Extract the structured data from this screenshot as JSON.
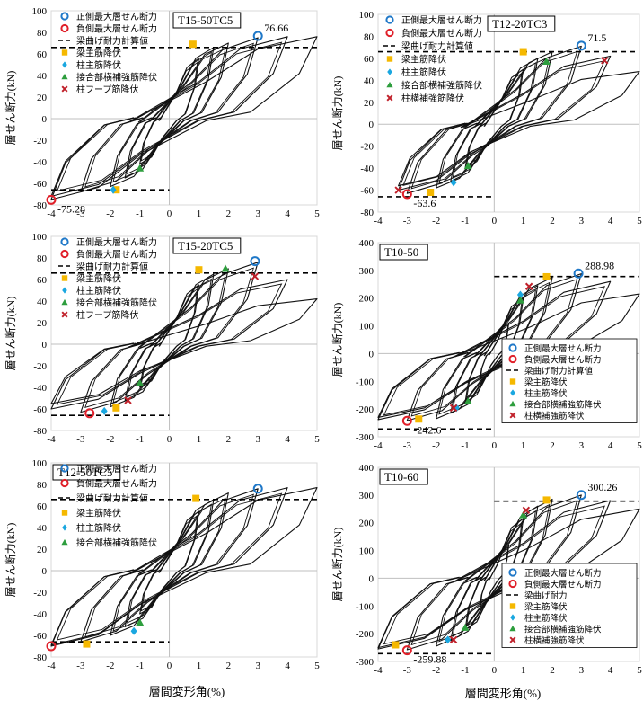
{
  "page": {
    "x_axis_label": "層間変形角(%)",
    "y_axis_label": "層せん断力(kN)"
  },
  "legend_text": {
    "pos_max": "正側最大層せん断力",
    "neg_max": "負側最大層せん断力",
    "calc": "梁曲げ耐力計算値",
    "calc_short": "梁曲げ耐力",
    "beam": "梁主筋降伏",
    "col": "柱主筋降伏",
    "joint": "接合部横補強筋降伏",
    "hoop": "柱フープ筋降伏",
    "colhoop": "柱横補強筋降伏"
  },
  "colors": {
    "pos": "#1f78c8",
    "neg": "#e0202a",
    "beam": "#f5b800",
    "col": "#1aa7e0",
    "joint": "#2e9e3e",
    "hoop": "#c0202a"
  },
  "chart_data": [
    {
      "type": "line",
      "title": "T15-50TC5",
      "xlim": [
        -4,
        5
      ],
      "ylim": [
        -80,
        100
      ],
      "xticks": [
        -4,
        -3,
        -2,
        -1,
        0,
        1,
        2,
        3,
        4,
        5
      ],
      "yticks": [
        -80,
        -60,
        -40,
        -20,
        0,
        20,
        40,
        60,
        80,
        100
      ],
      "calc_value": 66,
      "calc_line_x": [
        -4,
        5
      ],
      "pos_max": {
        "x": 3.0,
        "y": 76.66,
        "label": "76.66"
      },
      "neg_max": {
        "x": -4.0,
        "y": -75.28,
        "label": "-75.28"
      },
      "legend": [
        "pos_max",
        "neg_max",
        "calc",
        "beam",
        "col",
        "joint",
        "hoop"
      ],
      "markers": [
        {
          "kind": "beam",
          "x": 0.8,
          "y": 69
        },
        {
          "kind": "beam",
          "x": -1.8,
          "y": -66
        },
        {
          "kind": "col",
          "x": -1.9,
          "y": -66
        },
        {
          "kind": "joint",
          "x": -1.0,
          "y": -46
        }
      ],
      "envelope": {
        "peaks": [
          1,
          1.5,
          2,
          3,
          4,
          5
        ],
        "pos_y": [
          56,
          66,
          70,
          75,
          76,
          76
        ],
        "neg_y": [
          -42,
          -55,
          -63,
          -68,
          -72,
          -75
        ],
        "pos_max": 5,
        "neg_min": -4
      }
    },
    {
      "type": "line",
      "title": "T12-20TC3",
      "xlim": [
        -4,
        5
      ],
      "ylim": [
        -80,
        100
      ],
      "xticks": [
        -4,
        -3,
        -2,
        -1,
        0,
        1,
        2,
        3,
        4,
        5
      ],
      "yticks": [
        -80,
        -60,
        -40,
        -20,
        0,
        20,
        40,
        60,
        80,
        100
      ],
      "calc_value": 66,
      "calc_line_x": [
        -4,
        5
      ],
      "pos_max": {
        "x": 3.0,
        "y": 71.5,
        "label": "71.5"
      },
      "neg_max": {
        "x": -3.0,
        "y": -63.6,
        "label": "-63.6"
      },
      "legend": [
        "pos_max",
        "neg_max",
        "calc",
        "beam",
        "col",
        "joint",
        "colhoop"
      ],
      "markers": [
        {
          "kind": "beam",
          "x": 1.0,
          "y": 66
        },
        {
          "kind": "beam",
          "x": -2.2,
          "y": -62
        },
        {
          "kind": "col",
          "x": -1.4,
          "y": -53
        },
        {
          "kind": "joint",
          "x": 1.8,
          "y": 57
        },
        {
          "kind": "joint",
          "x": -0.9,
          "y": -38
        },
        {
          "kind": "colhoop",
          "x": 3.8,
          "y": 58
        },
        {
          "kind": "colhoop",
          "x": -3.3,
          "y": -60
        }
      ],
      "envelope": {
        "peaks": [
          1,
          1.5,
          2,
          3,
          4,
          5
        ],
        "pos_y": [
          50,
          60,
          66,
          71,
          62,
          48
        ],
        "neg_y": [
          -40,
          -52,
          -58,
          -63,
          -60,
          -56
        ],
        "pos_max": 5,
        "neg_min": -3.3
      }
    },
    {
      "type": "line",
      "title": "T15-20TC5",
      "xlim": [
        -4,
        5
      ],
      "ylim": [
        -80,
        100
      ],
      "xticks": [
        -4,
        -3,
        -2,
        -1,
        0,
        1,
        2,
        3,
        4,
        5
      ],
      "yticks": [
        -80,
        -60,
        -40,
        -20,
        0,
        20,
        40,
        60,
        80,
        100
      ],
      "calc_value": 66,
      "calc_line_x": [
        -4,
        5
      ],
      "pos_max": {
        "x": 2.9,
        "y": 77,
        "label": ""
      },
      "neg_max": {
        "x": -2.7,
        "y": -64,
        "label": ""
      },
      "legend": [
        "pos_max",
        "neg_max",
        "calc",
        "beam",
        "col",
        "joint",
        "hoop"
      ],
      "markers": [
        {
          "kind": "beam",
          "x": 1.0,
          "y": 69
        },
        {
          "kind": "beam",
          "x": -1.8,
          "y": -59
        },
        {
          "kind": "col",
          "x": -2.2,
          "y": -62
        },
        {
          "kind": "joint",
          "x": 1.9,
          "y": 70
        },
        {
          "kind": "joint",
          "x": -1.0,
          "y": -36
        },
        {
          "kind": "hoop",
          "x": 2.9,
          "y": 63
        },
        {
          "kind": "hoop",
          "x": -1.4,
          "y": -52
        }
      ],
      "envelope": {
        "peaks": [
          1,
          1.5,
          2,
          3,
          4,
          5
        ],
        "pos_y": [
          55,
          65,
          70,
          76,
          60,
          42
        ],
        "neg_y": [
          -40,
          -52,
          -58,
          -63,
          -60,
          -55
        ],
        "pos_max": 5,
        "neg_min": -4
      }
    },
    {
      "type": "line",
      "title": "T10-50",
      "xlim": [
        -4,
        5
      ],
      "ylim": [
        -300,
        400
      ],
      "xticks": [
        -4,
        -3,
        -2,
        -1,
        0,
        1,
        2,
        3,
        4,
        5
      ],
      "yticks": [
        -300,
        -200,
        -100,
        0,
        100,
        200,
        300,
        400
      ],
      "calc_value": 278,
      "calc_line_x": [
        0,
        5
      ],
      "calc_value_neg": -272,
      "calc_line_neg_x": [
        -4,
        0
      ],
      "pos_max": {
        "x": 2.9,
        "y": 288.98,
        "label": "288.98"
      },
      "neg_max": {
        "x": -3.0,
        "y": -242.6,
        "label": "-242.6"
      },
      "legend": [
        "pos_max",
        "neg_max",
        "calc",
        "beam",
        "col",
        "joint",
        "colhoop"
      ],
      "markers": [
        {
          "kind": "beam",
          "x": 1.8,
          "y": 277
        },
        {
          "kind": "beam",
          "x": -2.6,
          "y": -236
        },
        {
          "kind": "col",
          "x": 0.9,
          "y": 212
        },
        {
          "kind": "col",
          "x": -1.3,
          "y": -196
        },
        {
          "kind": "joint",
          "x": 0.9,
          "y": 192
        },
        {
          "kind": "joint",
          "x": -0.9,
          "y": -172
        },
        {
          "kind": "colhoop",
          "x": 1.2,
          "y": 242
        },
        {
          "kind": "colhoop",
          "x": -1.4,
          "y": -196
        }
      ],
      "envelope": {
        "peaks": [
          0.5,
          1,
          1.5,
          2,
          3,
          4,
          5
        ],
        "pos_y": [
          110,
          200,
          245,
          275,
          288,
          260,
          215
        ],
        "neg_y": [
          -100,
          -175,
          -215,
          -235,
          -242,
          -238,
          -230
        ],
        "pos_max": 5,
        "neg_min": -4
      }
    },
    {
      "type": "line",
      "title": "T12-50TC5",
      "xlim": [
        -4,
        5
      ],
      "ylim": [
        -80,
        100
      ],
      "xticks": [
        -4,
        -3,
        -2,
        -1,
        0,
        1,
        2,
        3,
        4,
        5
      ],
      "yticks": [
        -80,
        -60,
        -40,
        -20,
        0,
        20,
        40,
        60,
        80,
        100
      ],
      "calc_value": 66,
      "calc_line_x": [
        -4,
        5
      ],
      "pos_max": {
        "x": 3.0,
        "y": 76,
        "label": ""
      },
      "neg_max": {
        "x": -4.0,
        "y": -70,
        "label": ""
      },
      "legend": [
        "pos_max",
        "neg_max",
        "calc",
        "beam",
        "col",
        "joint"
      ],
      "markers": [
        {
          "kind": "beam",
          "x": 0.9,
          "y": 67
        },
        {
          "kind": "beam",
          "x": -2.8,
          "y": -68
        },
        {
          "kind": "col",
          "x": -1.2,
          "y": -56
        },
        {
          "kind": "joint",
          "x": -1.0,
          "y": -48
        }
      ],
      "envelope": {
        "peaks": [
          1,
          1.5,
          2,
          3,
          4,
          5
        ],
        "pos_y": [
          55,
          66,
          72,
          76,
          77,
          77
        ],
        "neg_y": [
          -40,
          -52,
          -60,
          -66,
          -69,
          -70
        ],
        "pos_max": 5,
        "neg_min": -4
      }
    },
    {
      "type": "line",
      "title": "T10-60",
      "xlim": [
        -4,
        5
      ],
      "ylim": [
        -300,
        400
      ],
      "xticks": [
        -4,
        -3,
        -2,
        -1,
        0,
        1,
        2,
        3,
        4,
        5
      ],
      "yticks": [
        -300,
        -200,
        -100,
        0,
        100,
        200,
        300,
        400
      ],
      "calc_value": 278,
      "calc_line_x": [
        0,
        5
      ],
      "calc_value_neg": -272,
      "calc_line_neg_x": [
        -4,
        0
      ],
      "pos_max": {
        "x": 3.0,
        "y": 300.26,
        "label": "300.26"
      },
      "neg_max": {
        "x": -3.0,
        "y": -259.88,
        "label": "-259.88"
      },
      "legend": [
        "pos_max",
        "neg_max",
        "calc_short",
        "beam",
        "col",
        "joint",
        "colhoop"
      ],
      "markers": [
        {
          "kind": "beam",
          "x": 1.8,
          "y": 282
        },
        {
          "kind": "beam",
          "x": -3.4,
          "y": -240
        },
        {
          "kind": "col",
          "x": -1.6,
          "y": -222
        },
        {
          "kind": "joint",
          "x": 1.0,
          "y": 228
        },
        {
          "kind": "joint",
          "x": -1.0,
          "y": -178
        },
        {
          "kind": "colhoop",
          "x": 1.1,
          "y": 245
        },
        {
          "kind": "colhoop",
          "x": -1.4,
          "y": -222
        }
      ],
      "envelope": {
        "peaks": [
          0.5,
          1,
          1.5,
          2,
          3,
          4,
          5
        ],
        "pos_y": [
          120,
          215,
          260,
          285,
          300,
          280,
          250
        ],
        "neg_y": [
          -110,
          -185,
          -225,
          -245,
          -258,
          -255,
          -250
        ],
        "pos_max": 5,
        "neg_min": -4
      }
    }
  ]
}
